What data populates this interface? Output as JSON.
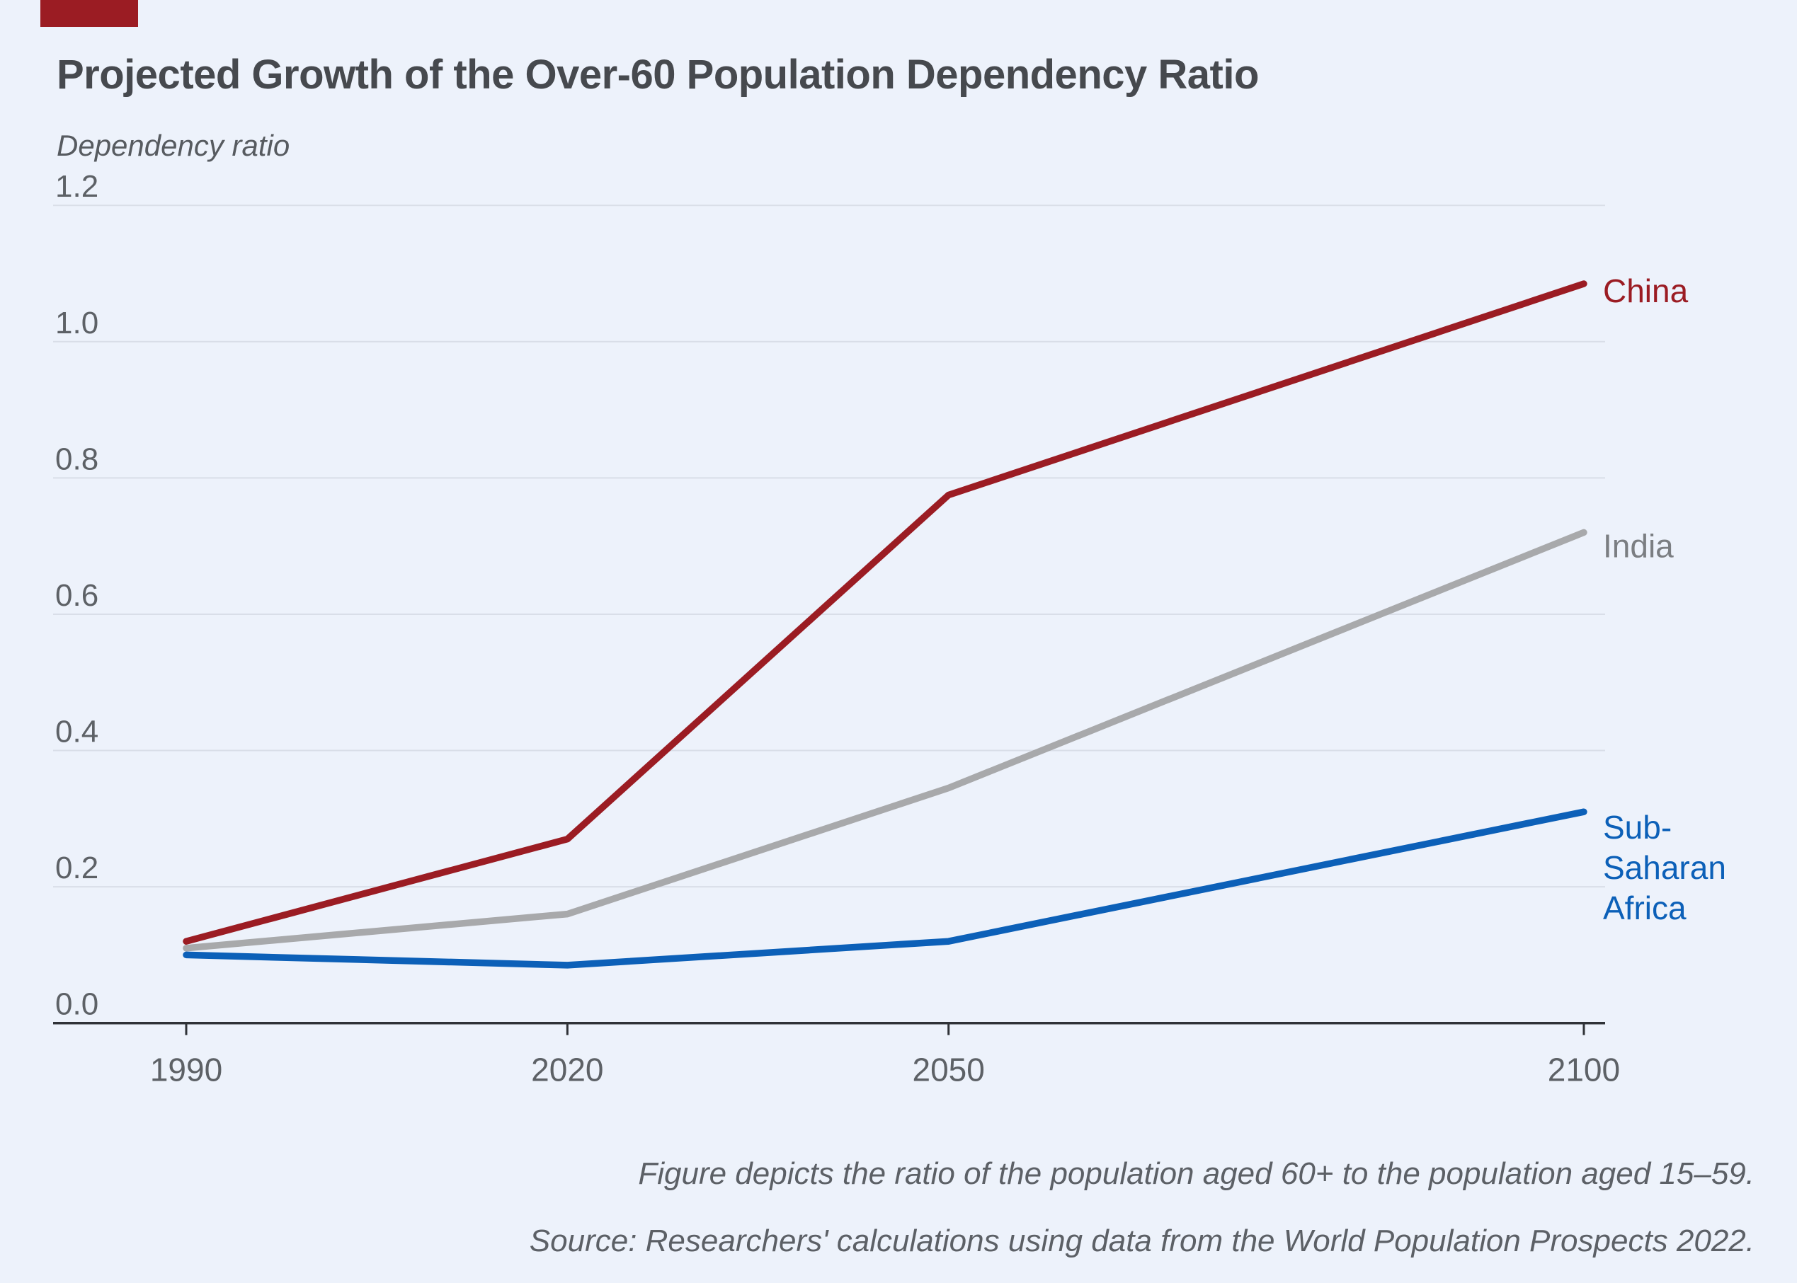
{
  "accent": {
    "bar_color": "#9b1c23"
  },
  "title": "Projected Growth of the Over-60 Population Dependency Ratio",
  "y_axis_title": "Dependency ratio",
  "footnotes": {
    "line1": "Figure depicts the ratio of the population aged 60+ to the population aged 15–59.",
    "line2": "Source: Researchers' calculations using data from the World Population Prospects 2022."
  },
  "chart_data": {
    "type": "line",
    "title": "Projected Growth of the Over-60 Population Dependency Ratio",
    "xlabel": "",
    "ylabel": "Dependency ratio",
    "x": [
      1990,
      2020,
      2050,
      2100
    ],
    "x_tick_labels": [
      "1990",
      "2020",
      "2050",
      "2100"
    ],
    "y_ticks": [
      0.0,
      0.2,
      0.4,
      0.6,
      0.8,
      1.0,
      1.2
    ],
    "y_tick_labels": [
      "0.0",
      "0.2",
      "0.4",
      "0.6",
      "0.8",
      "1.0",
      "1.2"
    ],
    "ylim": [
      0,
      1.2
    ],
    "grid": true,
    "grid_color": "#d9dee8",
    "axis_color": "#2f3237",
    "legend_position": "right-of-line-ends",
    "series": [
      {
        "name": "China",
        "label_lines": [
          "China"
        ],
        "color": "#9b1c23",
        "label_color": "#9b1c23",
        "values": [
          0.12,
          0.27,
          0.775,
          1.085
        ]
      },
      {
        "name": "India",
        "label_lines": [
          "India"
        ],
        "color": "#a8a9ab",
        "label_color": "#7b7e82",
        "values": [
          0.11,
          0.16,
          0.345,
          0.72
        ]
      },
      {
        "name": "Sub-Saharan Africa",
        "label_lines": [
          "Sub-",
          "Saharan",
          "Africa"
        ],
        "color": "#0c60b8",
        "label_color": "#0c60b8",
        "values": [
          0.1,
          0.085,
          0.12,
          0.31
        ]
      }
    ]
  }
}
